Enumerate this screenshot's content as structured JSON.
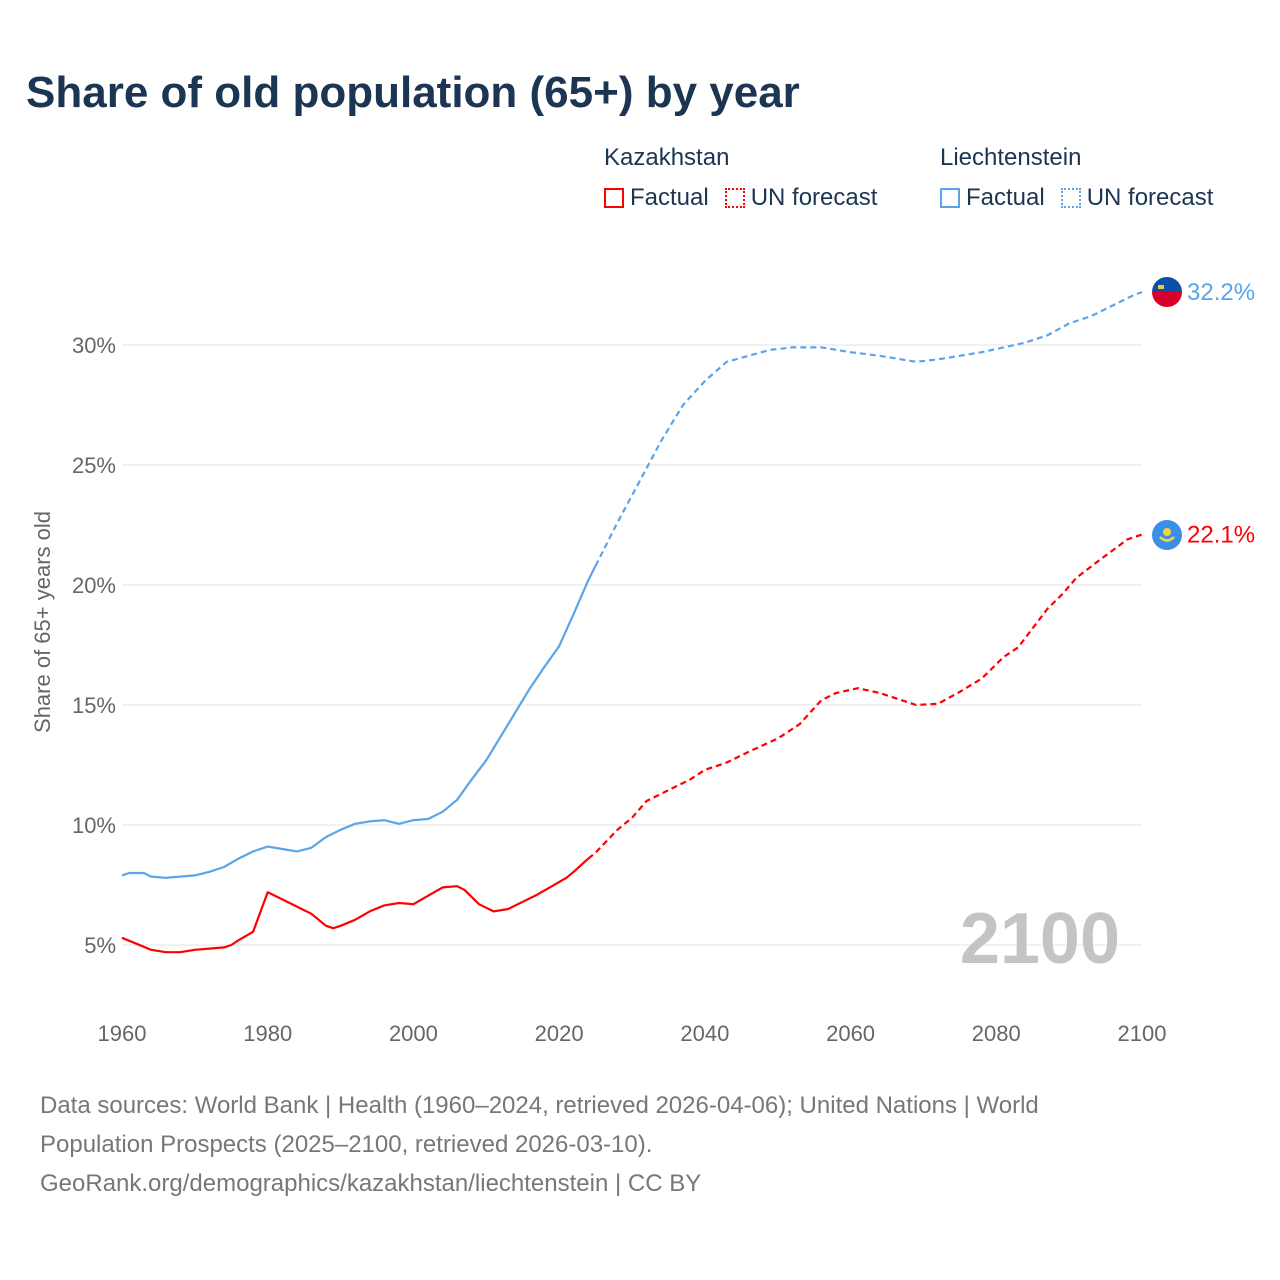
{
  "chart_data": {
    "type": "line",
    "title": "Share of old population (65+) by year",
    "xlabel": "",
    "ylabel": "Share of 65+ years old",
    "xlim": [
      1960,
      2100
    ],
    "ylim": [
      3.5,
      32
    ],
    "x_ticks": [
      "1960",
      "1980",
      "2000",
      "2020",
      "2040",
      "2060",
      "2080",
      "2100"
    ],
    "y_ticks": [
      {
        "value": 5,
        "label": "5%"
      },
      {
        "value": 10,
        "label": "10%"
      },
      {
        "value": 15,
        "label": "15%"
      },
      {
        "value": 20,
        "label": "20%"
      },
      {
        "value": 25,
        "label": "25%"
      },
      {
        "value": 30,
        "label": "30%"
      }
    ],
    "grid": true,
    "year_watermark": "2100",
    "legend": {
      "placement": "top-right",
      "groups": [
        {
          "name": "Kazakhstan",
          "factual": "Factual",
          "forecast": "UN forecast",
          "color": "#ff0000"
        },
        {
          "name": "Liechtenstein",
          "factual": "Factual",
          "forecast": "UN forecast",
          "color": "#5ba4ea"
        }
      ]
    },
    "series": [
      {
        "name": "Kazakhstan",
        "kind": "Factual",
        "color": "#ff0000",
        "x": [
          1960,
          1962,
          1964,
          1966,
          1968,
          1970,
          1972,
          1974,
          1975,
          1976,
          1978,
          1980,
          1982,
          1984,
          1986,
          1988,
          1989,
          1990,
          1992,
          1994,
          1996,
          1998,
          2000,
          2002,
          2004,
          2006,
          2007,
          2009,
          2011,
          2013,
          2015,
          2017,
          2019,
          2021,
          2022,
          2024
        ],
        "y": [
          5.3,
          5.05,
          4.8,
          4.7,
          4.7,
          4.8,
          4.85,
          4.9,
          5.0,
          5.2,
          5.55,
          7.2,
          6.9,
          6.6,
          6.3,
          5.8,
          5.7,
          5.8,
          6.05,
          6.4,
          6.65,
          6.75,
          6.7,
          7.05,
          7.4,
          7.45,
          7.3,
          6.7,
          6.4,
          6.5,
          6.8,
          7.1,
          7.45,
          7.8,
          8.05,
          8.6
        ]
      },
      {
        "name": "Kazakhstan",
        "kind": "UN forecast",
        "color": "#ff0000",
        "x": [
          2024,
          2025,
          2028,
          2030,
          2032,
          2035,
          2038,
          2040,
          2043,
          2046,
          2050,
          2053,
          2056,
          2058,
          2061,
          2064,
          2067,
          2069,
          2072,
          2075,
          2078,
          2081,
          2083,
          2085,
          2087,
          2089,
          2091,
          2094,
          2096,
          2098,
          2100
        ],
        "y": [
          8.6,
          8.85,
          9.8,
          10.3,
          11.0,
          11.45,
          11.9,
          12.3,
          12.6,
          13.05,
          13.6,
          14.2,
          15.2,
          15.5,
          15.7,
          15.5,
          15.2,
          15.0,
          15.05,
          15.55,
          16.1,
          17.0,
          17.4,
          18.2,
          19.0,
          19.6,
          20.3,
          21.0,
          21.45,
          21.9,
          22.1
        ]
      },
      {
        "name": "Liechtenstein",
        "kind": "Factual",
        "color": "#5ba4ea",
        "x": [
          1960,
          1961,
          1963,
          1964,
          1966,
          1970,
          1972,
          1974,
          1976,
          1978,
          1980,
          1982,
          1984,
          1986,
          1988,
          1990,
          1992,
          1994,
          1996,
          1998,
          2000,
          2002,
          2004,
          2006,
          2008,
          2010,
          2012,
          2014,
          2016,
          2018,
          2020,
          2022,
          2024,
          2025
        ],
        "y": [
          7.9,
          8.0,
          8.0,
          7.85,
          7.8,
          7.9,
          8.05,
          8.25,
          8.6,
          8.9,
          9.1,
          9.0,
          8.9,
          9.05,
          9.5,
          9.8,
          10.05,
          10.15,
          10.2,
          10.05,
          10.2,
          10.25,
          10.55,
          11.05,
          11.9,
          12.7,
          13.7,
          14.7,
          15.7,
          16.6,
          17.45,
          18.8,
          20.2,
          20.8
        ]
      },
      {
        "name": "Liechtenstein",
        "kind": "UN forecast",
        "color": "#5ba4ea",
        "x": [
          2025,
          2028,
          2031,
          2034,
          2037,
          2040,
          2043,
          2046,
          2049,
          2052,
          2056,
          2060,
          2064,
          2066,
          2069,
          2072,
          2075,
          2078,
          2081,
          2084,
          2087,
          2090,
          2093,
          2096,
          2099,
          2100
        ],
        "y": [
          20.8,
          22.6,
          24.3,
          26.0,
          27.5,
          28.5,
          29.3,
          29.55,
          29.8,
          29.9,
          29.9,
          29.7,
          29.55,
          29.45,
          29.3,
          29.4,
          29.55,
          29.7,
          29.9,
          30.1,
          30.4,
          30.9,
          31.2,
          31.65,
          32.1,
          32.2
        ]
      }
    ],
    "end_labels": [
      {
        "name": "Liechtenstein",
        "value": 32.2,
        "label": "32.2%",
        "color": "#5ba4ea"
      },
      {
        "name": "Kazakhstan",
        "value": 22.1,
        "label": "22.1%",
        "color": "#ff0000"
      }
    ]
  },
  "footer": {
    "line1": "Data sources: World Bank | Health (1960–2024, retrieved 2026-04-06); United Nations | World",
    "line2": "Population Prospects (2025–2100, retrieved 2026-03-10).",
    "line3": "GeoRank.org/demographics/kazakhstan/liechtenstein | CC BY"
  }
}
